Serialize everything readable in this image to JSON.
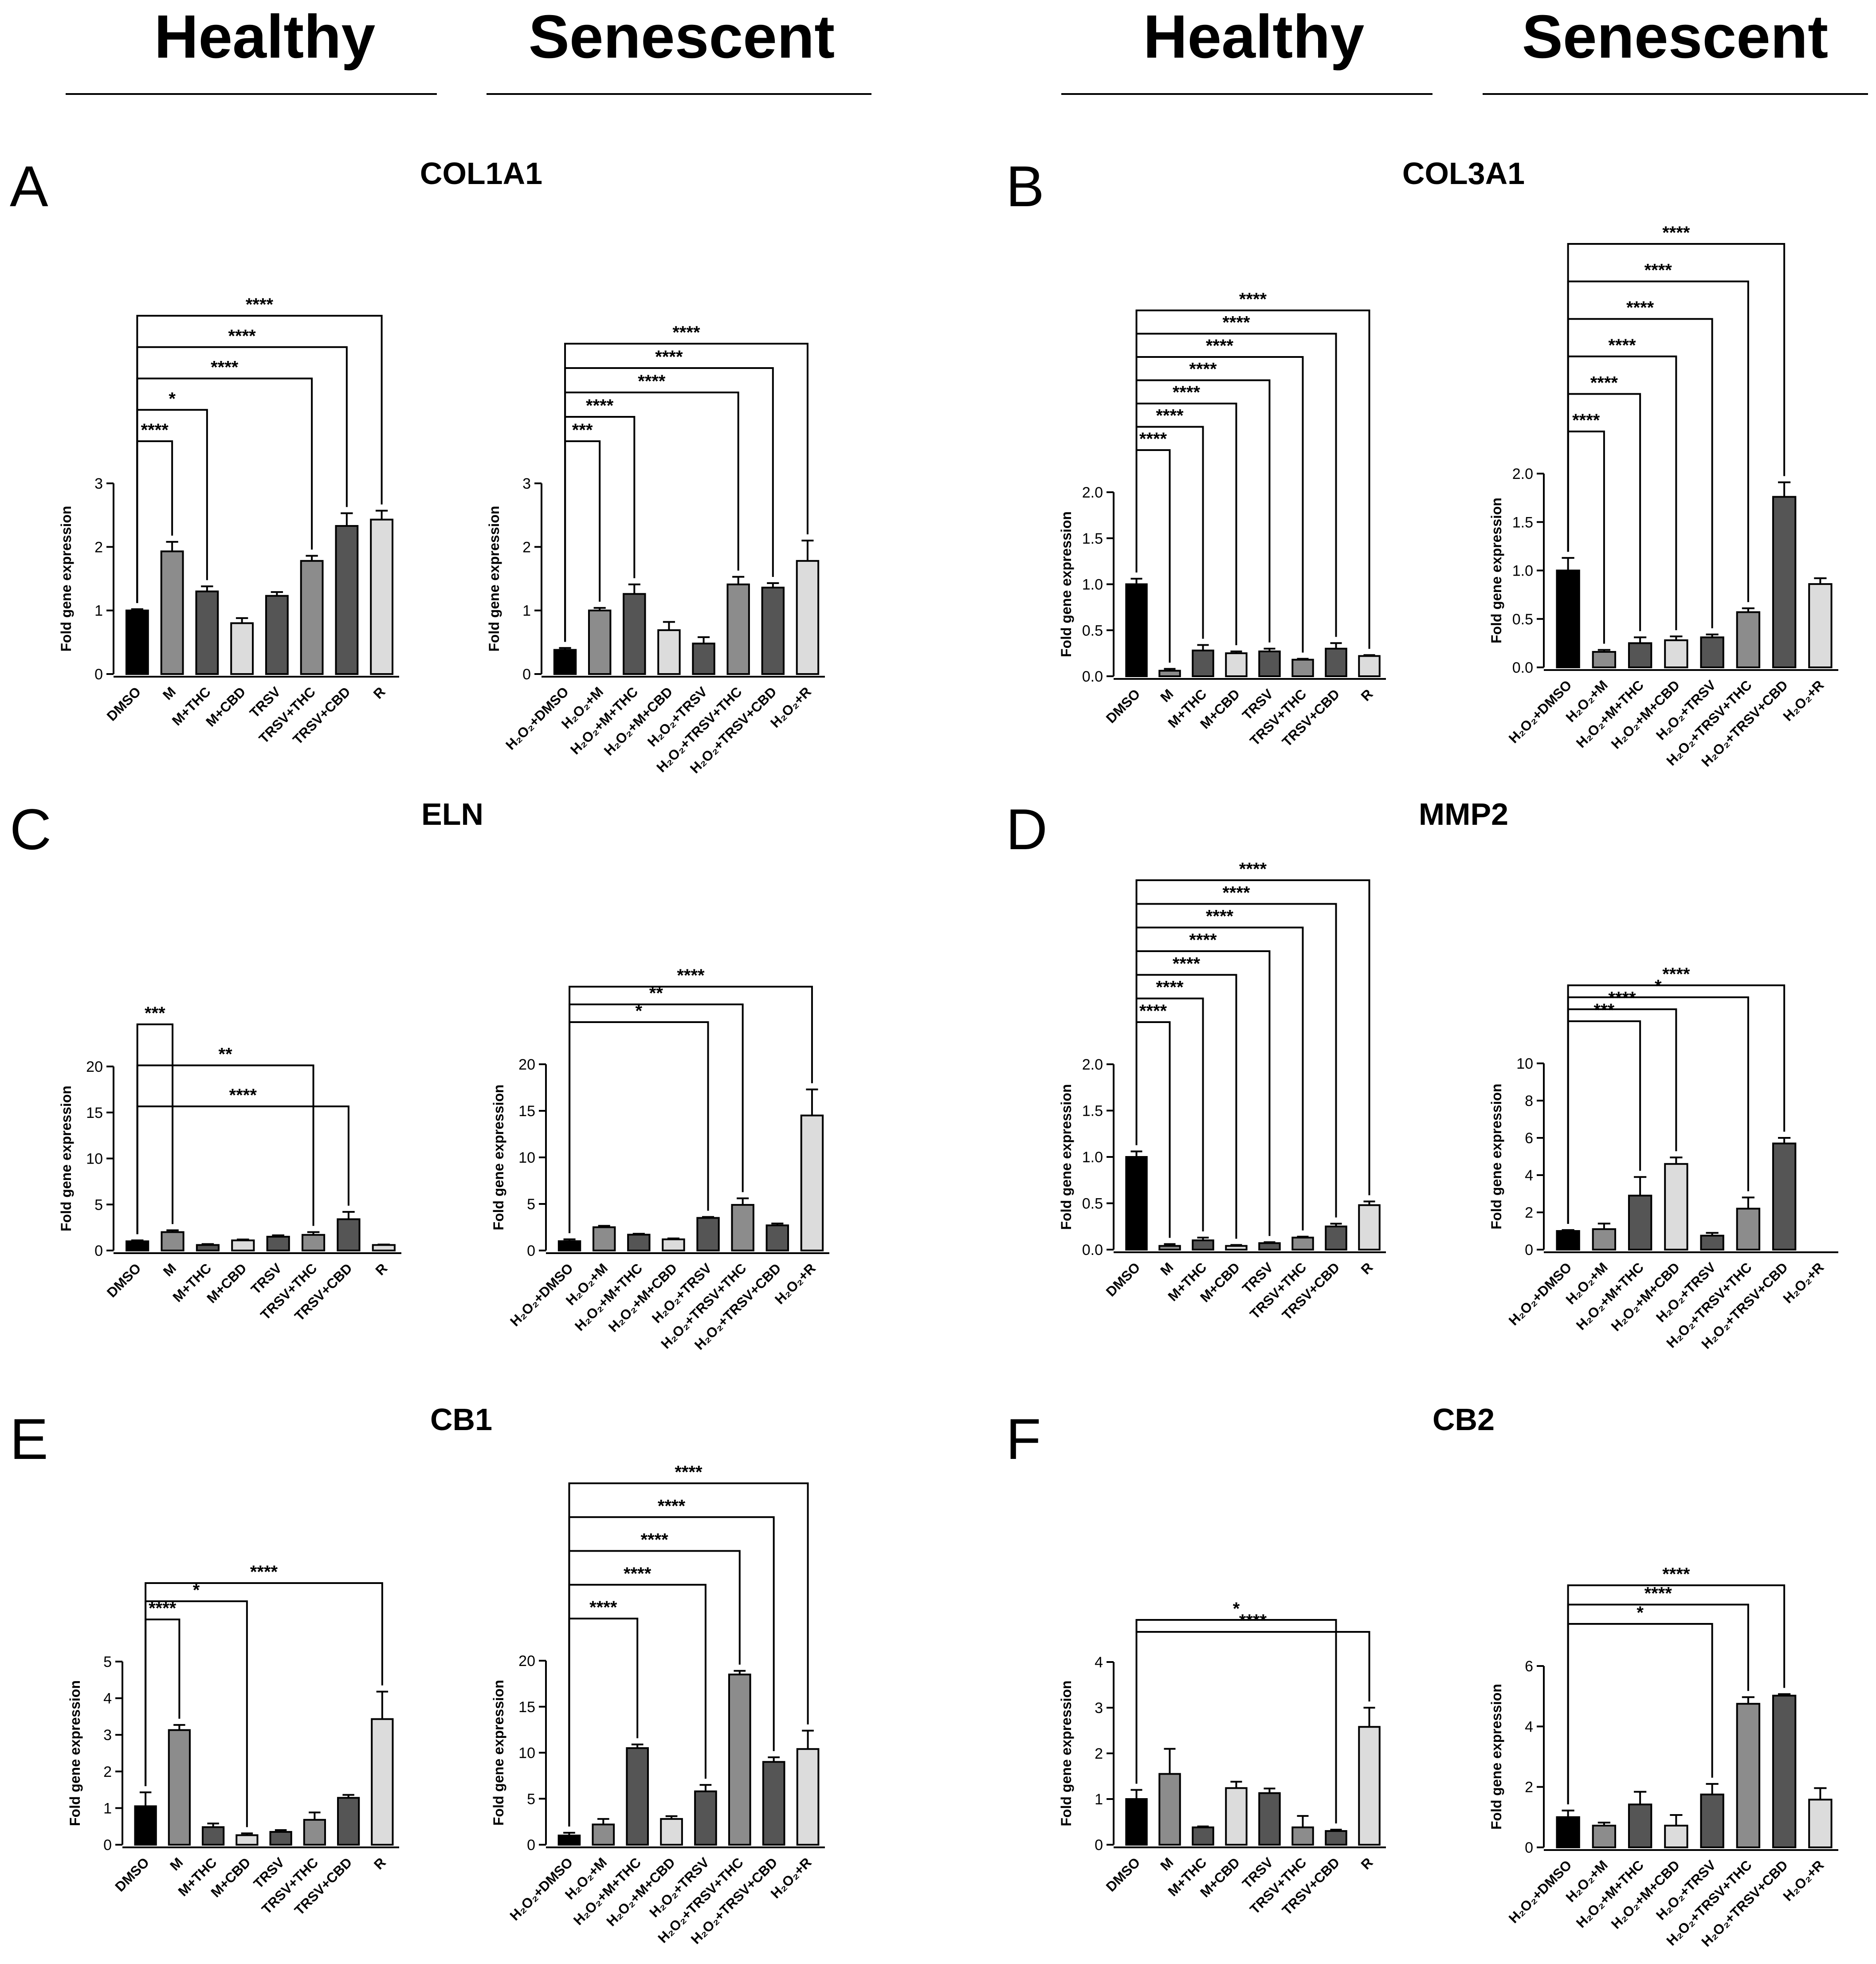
{
  "headers": {
    "left": [
      "Healthy",
      "Senescent"
    ],
    "right": [
      "Healthy",
      "Senescent"
    ]
  },
  "colors": {
    "black": "#000000",
    "mid_gray": "#8c8c8c",
    "dark_gray": "#555555",
    "light_gray": "#dcdcdc"
  },
  "panels": [
    {
      "letter": "A",
      "gene": "COL1A1"
    },
    {
      "letter": "B",
      "gene": "COL3A1"
    },
    {
      "letter": "C",
      "gene": "ELN"
    },
    {
      "letter": "D",
      "gene": "MMP2"
    },
    {
      "letter": "E",
      "gene": "CB1"
    },
    {
      "letter": "F",
      "gene": "CB2"
    }
  ],
  "chart_data": [
    {
      "panel": "A",
      "group": "Healthy",
      "type": "bar",
      "ylabel": "Fold gene expression",
      "ylim": [
        0,
        3
      ],
      "yticks": [
        "0",
        "1",
        "2",
        "3"
      ],
      "categories": [
        "DMSO",
        "M",
        "M+THC",
        "M+CBD",
        "TRSV",
        "TRSV+THC",
        "TRSV+CBD",
        "R"
      ],
      "values": [
        1.0,
        1.93,
        1.3,
        0.8,
        1.23,
        1.78,
        2.33,
        2.43
      ],
      "errors": [
        0.02,
        0.15,
        0.08,
        0.08,
        0.06,
        0.08,
        0.2,
        0.14
      ],
      "colors": [
        "black",
        "mid_gray",
        "dark_gray",
        "light_gray",
        "dark_gray",
        "mid_gray",
        "dark_gray",
        "light_gray"
      ],
      "significance": [
        {
          "to": 1,
          "label": "****"
        },
        {
          "to": 2,
          "label": "*"
        },
        {
          "to": 5,
          "label": "****"
        },
        {
          "to": 6,
          "label": "****"
        },
        {
          "to": 7,
          "label": "****"
        }
      ]
    },
    {
      "panel": "A",
      "group": "Senescent",
      "type": "bar",
      "ylabel": "Fold gene expression",
      "ylim": [
        0,
        3
      ],
      "yticks": [
        "0",
        "1",
        "2",
        "3"
      ],
      "categories": [
        "H₂O₂+DMSO",
        "H₂O₂+M",
        "H₂O₂+M+THC",
        "H₂O₂+M+CBD",
        "H₂O₂+TRSV",
        "H₂O₂+TRSV+THC",
        "H₂O₂+TRSV+CBD",
        "H₂O₂+R"
      ],
      "values": [
        0.38,
        1.0,
        1.26,
        0.69,
        0.48,
        1.41,
        1.36,
        1.78
      ],
      "errors": [
        0.03,
        0.04,
        0.15,
        0.13,
        0.1,
        0.12,
        0.07,
        0.32
      ],
      "colors": [
        "black",
        "mid_gray",
        "dark_gray",
        "light_gray",
        "dark_gray",
        "mid_gray",
        "dark_gray",
        "light_gray"
      ],
      "significance": [
        {
          "to": 1,
          "label": "***"
        },
        {
          "to": 2,
          "label": "****"
        },
        {
          "to": 5,
          "label": "****"
        },
        {
          "to": 6,
          "label": "****"
        },
        {
          "to": 7,
          "label": "****"
        }
      ]
    },
    {
      "panel": "B",
      "group": "Healthy",
      "type": "bar",
      "ylabel": "Fold gene expression",
      "ylim": [
        0,
        2.0
      ],
      "yticks": [
        "0.0",
        "0.5",
        "1.0",
        "1.5",
        "2.0"
      ],
      "categories": [
        "DMSO",
        "M",
        "M+THC",
        "M+CBD",
        "TRSV",
        "TRSV+THC",
        "TRSV+CBD",
        "R"
      ],
      "values": [
        1.0,
        0.06,
        0.28,
        0.25,
        0.27,
        0.18,
        0.3,
        0.22
      ],
      "errors": [
        0.06,
        0.02,
        0.06,
        0.02,
        0.03,
        0.01,
        0.06,
        0.01
      ],
      "colors": [
        "black",
        "mid_gray",
        "dark_gray",
        "light_gray",
        "dark_gray",
        "mid_gray",
        "dark_gray",
        "light_gray"
      ],
      "significance": [
        {
          "to": 1,
          "label": "****"
        },
        {
          "to": 2,
          "label": "****"
        },
        {
          "to": 3,
          "label": "****"
        },
        {
          "to": 4,
          "label": "****"
        },
        {
          "to": 5,
          "label": "****"
        },
        {
          "to": 6,
          "label": "****"
        },
        {
          "to": 7,
          "label": "****"
        }
      ]
    },
    {
      "panel": "B",
      "group": "Senescent",
      "type": "bar",
      "ylabel": "Fold gene expression",
      "ylim": [
        0,
        2.0
      ],
      "yticks": [
        "0.0",
        "0.5",
        "1.0",
        "1.5",
        "2.0"
      ],
      "categories": [
        "H₂O₂+DMSO",
        "H₂O₂+M",
        "H₂O₂+M+THC",
        "H₂O₂+M+CBD",
        "H₂O₂+TRSV",
        "H₂O₂+TRSV+THC",
        "H₂O₂+TRSV+CBD",
        "H₂O₂+R"
      ],
      "values": [
        1.0,
        0.16,
        0.25,
        0.28,
        0.31,
        0.57,
        1.76,
        0.86
      ],
      "errors": [
        0.13,
        0.02,
        0.06,
        0.04,
        0.03,
        0.04,
        0.15,
        0.06
      ],
      "colors": [
        "black",
        "mid_gray",
        "dark_gray",
        "light_gray",
        "dark_gray",
        "mid_gray",
        "dark_gray",
        "light_gray"
      ],
      "significance": [
        {
          "to": 1,
          "label": "****"
        },
        {
          "to": 2,
          "label": "****"
        },
        {
          "to": 3,
          "label": "****"
        },
        {
          "to": 4,
          "label": "****"
        },
        {
          "to": 5,
          "label": "****"
        },
        {
          "to": 6,
          "label": "****"
        }
      ]
    },
    {
      "panel": "C",
      "group": "Healthy",
      "type": "bar",
      "ylabel": "Fold gene expression",
      "ylim": [
        0,
        20
      ],
      "yticks": [
        "0",
        "5",
        "10",
        "15",
        "20"
      ],
      "categories": [
        "DMSO",
        "M",
        "M+THC",
        "M+CBD",
        "TRSV",
        "TRSV+THC",
        "TRSV+CBD",
        "R"
      ],
      "values": [
        1.0,
        2.0,
        0.6,
        1.1,
        1.5,
        1.7,
        3.4,
        0.6
      ],
      "errors": [
        0.1,
        0.2,
        0.1,
        0.1,
        0.15,
        0.3,
        0.8,
        0.05
      ],
      "colors": [
        "black",
        "mid_gray",
        "dark_gray",
        "light_gray",
        "dark_gray",
        "mid_gray",
        "dark_gray",
        "light_gray"
      ],
      "significance": [
        {
          "to": 1,
          "label": "***"
        },
        {
          "to": 5,
          "label": "**"
        },
        {
          "to": 6,
          "label": "****"
        }
      ]
    },
    {
      "panel": "C",
      "group": "Senescent",
      "type": "bar",
      "ylabel": "Fold gene expression",
      "ylim": [
        0,
        20
      ],
      "yticks": [
        "0",
        "5",
        "10",
        "15",
        "20"
      ],
      "categories": [
        "H₂O₂+DMSO",
        "H₂O₂+M",
        "H₂O₂+M+THC",
        "H₂O₂+M+CBD",
        "H₂O₂+TRSV",
        "H₂O₂+TRSV+THC",
        "H₂O₂+TRSV+CBD",
        "H₂O₂+R"
      ],
      "values": [
        1.0,
        2.5,
        1.7,
        1.2,
        3.5,
        4.9,
        2.7,
        14.5
      ],
      "errors": [
        0.2,
        0.15,
        0.1,
        0.1,
        0.1,
        0.7,
        0.2,
        2.8
      ],
      "colors": [
        "black",
        "mid_gray",
        "dark_gray",
        "light_gray",
        "dark_gray",
        "mid_gray",
        "dark_gray",
        "light_gray"
      ],
      "significance": [
        {
          "to": 4,
          "label": "*"
        },
        {
          "to": 5,
          "label": "**"
        },
        {
          "to": 7,
          "label": "****"
        }
      ]
    },
    {
      "panel": "D",
      "group": "Healthy",
      "type": "bar",
      "ylabel": "Fold gene expression",
      "ylim": [
        0,
        2.0
      ],
      "yticks": [
        "0.0",
        "0.5",
        "1.0",
        "1.5",
        "2.0"
      ],
      "categories": [
        "DMSO",
        "M",
        "M+THC",
        "M+CBD",
        "TRSV",
        "TRSV+THC",
        "TRSV+CBD",
        "R"
      ],
      "values": [
        1.0,
        0.04,
        0.1,
        0.04,
        0.07,
        0.13,
        0.25,
        0.48
      ],
      "errors": [
        0.06,
        0.02,
        0.03,
        0.01,
        0.01,
        0.01,
        0.03,
        0.04
      ],
      "colors": [
        "black",
        "mid_gray",
        "dark_gray",
        "light_gray",
        "dark_gray",
        "mid_gray",
        "dark_gray",
        "light_gray"
      ],
      "significance": [
        {
          "to": 1,
          "label": "****"
        },
        {
          "to": 2,
          "label": "****"
        },
        {
          "to": 3,
          "label": "****"
        },
        {
          "to": 4,
          "label": "****"
        },
        {
          "to": 5,
          "label": "****"
        },
        {
          "to": 6,
          "label": "****"
        },
        {
          "to": 7,
          "label": "****"
        }
      ]
    },
    {
      "panel": "D",
      "group": "Senescent",
      "type": "bar",
      "ylabel": "Fold gene expression",
      "ylim": [
        0,
        10
      ],
      "yticks": [
        "0",
        "2",
        "4",
        "6",
        "8",
        "10"
      ],
      "categories": [
        "H₂O₂+DMSO",
        "H₂O₂+M",
        "H₂O₂+M+THC",
        "H₂O₂+M+CBD",
        "H₂O₂+TRSV",
        "H₂O₂+TRSV+THC",
        "H₂O₂+TRSV+CBD",
        "H₂O₂+R"
      ],
      "values": [
        1.0,
        1.1,
        2.9,
        4.6,
        0.75,
        2.2,
        5.7,
        0
      ],
      "errors": [
        0.05,
        0.3,
        1.0,
        0.35,
        0.15,
        0.6,
        0.3,
        0
      ],
      "colors": [
        "black",
        "mid_gray",
        "dark_gray",
        "light_gray",
        "dark_gray",
        "mid_gray",
        "dark_gray",
        "light_gray"
      ],
      "significance": [
        {
          "to": 2,
          "label": "***"
        },
        {
          "to": 3,
          "label": "****"
        },
        {
          "to": 5,
          "label": "*"
        },
        {
          "to": 6,
          "label": "****"
        }
      ]
    },
    {
      "panel": "E",
      "group": "Healthy",
      "type": "bar",
      "ylabel": "Fold gene expression",
      "ylim": [
        0,
        5
      ],
      "yticks": [
        "0",
        "1",
        "2",
        "3",
        "4",
        "5"
      ],
      "categories": [
        "DMSO",
        "M",
        "M+THC",
        "M+CBD",
        "TRSV",
        "TRSV+THC",
        "TRSV+CBD",
        "R"
      ],
      "values": [
        1.05,
        3.13,
        0.48,
        0.26,
        0.35,
        0.68,
        1.28,
        3.43
      ],
      "errors": [
        0.38,
        0.14,
        0.1,
        0.05,
        0.05,
        0.2,
        0.08,
        0.75
      ],
      "colors": [
        "black",
        "mid_gray",
        "dark_gray",
        "light_gray",
        "dark_gray",
        "mid_gray",
        "dark_gray",
        "light_gray"
      ],
      "significance": [
        {
          "to": 1,
          "label": "****"
        },
        {
          "to": 3,
          "label": "*"
        },
        {
          "to": 7,
          "label": "****"
        }
      ]
    },
    {
      "panel": "E",
      "group": "Senescent",
      "type": "bar",
      "ylabel": "Fold gene expression",
      "ylim": [
        0,
        20
      ],
      "yticks": [
        "0",
        "5",
        "10",
        "15",
        "20"
      ],
      "categories": [
        "H₂O₂+DMSO",
        "H₂O₂+M",
        "H₂O₂+M+THC",
        "H₂O₂+M+CBD",
        "H₂O₂+TRSV",
        "H₂O₂+TRSV+THC",
        "H₂O₂+TRSV+CBD",
        "H₂O₂+R"
      ],
      "values": [
        1.0,
        2.2,
        10.5,
        2.8,
        5.8,
        18.5,
        9.0,
        10.4
      ],
      "errors": [
        0.3,
        0.6,
        0.4,
        0.3,
        0.7,
        0.4,
        0.5,
        2.0
      ],
      "colors": [
        "black",
        "mid_gray",
        "dark_gray",
        "light_gray",
        "dark_gray",
        "mid_gray",
        "dark_gray",
        "light_gray"
      ],
      "significance": [
        {
          "to": 2,
          "label": "****"
        },
        {
          "to": 4,
          "label": "****"
        },
        {
          "to": 5,
          "label": "****"
        },
        {
          "to": 6,
          "label": "****"
        },
        {
          "to": 7,
          "label": "****"
        }
      ]
    },
    {
      "panel": "F",
      "group": "Healthy",
      "type": "bar",
      "ylabel": "Fold gene expression",
      "ylim": [
        0,
        4
      ],
      "yticks": [
        "0",
        "1",
        "2",
        "3",
        "4"
      ],
      "categories": [
        "DMSO",
        "M",
        "M+THC",
        "M+CBD",
        "TRSV",
        "TRSV+THC",
        "TRSV+CBD",
        "R"
      ],
      "values": [
        1.0,
        1.55,
        0.38,
        1.24,
        1.13,
        0.38,
        0.3,
        2.58
      ],
      "errors": [
        0.2,
        0.55,
        0.02,
        0.14,
        0.1,
        0.25,
        0.03,
        0.42
      ],
      "colors": [
        "black",
        "mid_gray",
        "dark_gray",
        "light_gray",
        "dark_gray",
        "mid_gray",
        "dark_gray",
        "light_gray"
      ],
      "significance": [
        {
          "to": 6,
          "label": "*"
        },
        {
          "to": 7,
          "label": "****"
        }
      ]
    },
    {
      "panel": "F",
      "group": "Senescent",
      "type": "bar",
      "ylabel": "Fold gene expression",
      "ylim": [
        0,
        6
      ],
      "yticks": [
        "0",
        "2",
        "4",
        "6"
      ],
      "categories": [
        "H₂O₂+DMSO",
        "H₂O₂+M",
        "H₂O₂+M+THC",
        "H₂O₂+M+CBD",
        "H₂O₂+TRSV",
        "H₂O₂+TRSV+THC",
        "H₂O₂+TRSV+CBD",
        "H₂O₂+R"
      ],
      "values": [
        1.0,
        0.72,
        1.42,
        0.72,
        1.75,
        4.75,
        5.02,
        1.58
      ],
      "errors": [
        0.22,
        0.1,
        0.42,
        0.35,
        0.35,
        0.22,
        0.05,
        0.38
      ],
      "colors": [
        "black",
        "mid_gray",
        "dark_gray",
        "light_gray",
        "dark_gray",
        "mid_gray",
        "dark_gray",
        "light_gray"
      ],
      "significance": [
        {
          "to": 4,
          "label": "*"
        },
        {
          "to": 5,
          "label": "****"
        },
        {
          "to": 6,
          "label": "****"
        }
      ]
    }
  ]
}
